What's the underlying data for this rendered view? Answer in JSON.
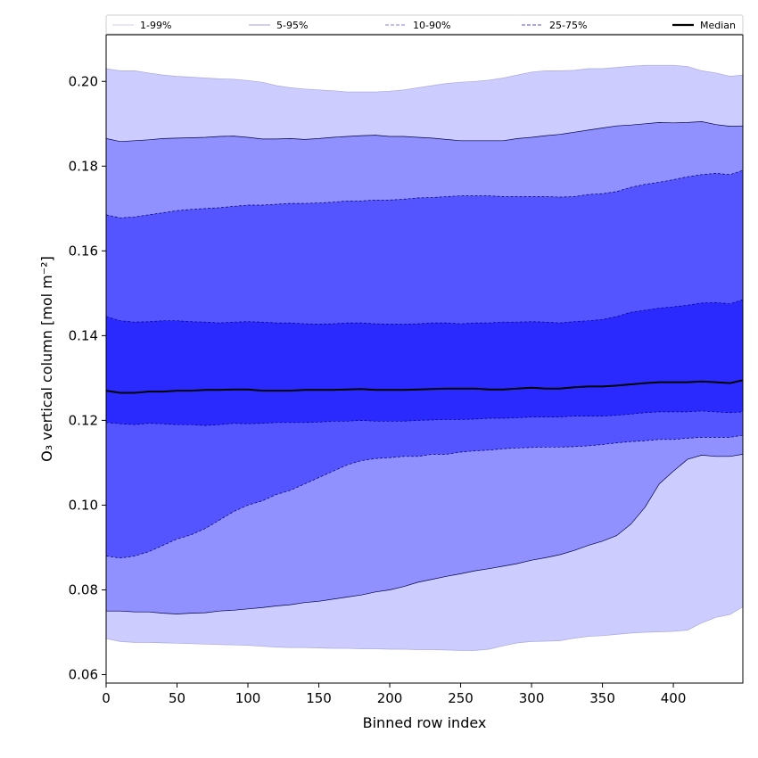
{
  "chart_data": {
    "type": "area",
    "title": "",
    "xlabel": "Binned row index",
    "ylabel": "O₃ vertical column [mol m⁻²]",
    "xlim": [
      0,
      449
    ],
    "ylim": [
      0.058,
      0.211
    ],
    "xticks": [
      0,
      50,
      100,
      150,
      200,
      250,
      300,
      350,
      400
    ],
    "yticks": [
      0.06,
      0.08,
      0.1,
      0.12,
      0.14,
      0.16,
      0.18,
      0.2
    ],
    "grid": false,
    "legend_position": "top",
    "x": [
      0,
      10,
      20,
      30,
      40,
      50,
      60,
      70,
      80,
      90,
      100,
      110,
      120,
      130,
      140,
      150,
      160,
      170,
      180,
      190,
      200,
      210,
      220,
      230,
      240,
      250,
      260,
      270,
      280,
      290,
      300,
      310,
      320,
      330,
      340,
      350,
      360,
      370,
      380,
      390,
      400,
      410,
      420,
      430,
      440,
      449
    ],
    "bands": [
      {
        "name": "1-99%",
        "color": "#ccccff",
        "line_color": "#aaaadd",
        "line_style": "solid",
        "lower": [
          0.0685,
          0.0678,
          0.0676,
          0.0676,
          0.0675,
          0.0674,
          0.0673,
          0.0672,
          0.0671,
          0.067,
          0.0669,
          0.0667,
          0.0665,
          0.0664,
          0.0664,
          0.0663,
          0.0662,
          0.0662,
          0.0661,
          0.0661,
          0.066,
          0.066,
          0.0659,
          0.0659,
          0.0658,
          0.0657,
          0.0657,
          0.066,
          0.0668,
          0.0675,
          0.0678,
          0.0679,
          0.068,
          0.0686,
          0.069,
          0.0692,
          0.0695,
          0.0698,
          0.07,
          0.0701,
          0.0702,
          0.0705,
          0.0722,
          0.0735,
          0.0742,
          0.076
        ],
        "upper": [
          0.203,
          0.2025,
          0.2025,
          0.202,
          0.2015,
          0.2012,
          0.201,
          0.2008,
          0.2006,
          0.2005,
          0.2002,
          0.1998,
          0.199,
          0.1985,
          0.1982,
          0.198,
          0.1978,
          0.1975,
          0.1975,
          0.1975,
          0.1977,
          0.198,
          0.1985,
          0.199,
          0.1995,
          0.1998,
          0.2,
          0.2003,
          0.2008,
          0.2015,
          0.2022,
          0.2025,
          0.2025,
          0.2026,
          0.203,
          0.203,
          0.2033,
          0.2036,
          0.2038,
          0.2038,
          0.2038,
          0.2035,
          0.2025,
          0.202,
          0.2012,
          0.2015
        ]
      },
      {
        "name": "5-95%",
        "color": "#9090ff",
        "line_color": "#000044",
        "line_style": "solid",
        "lower": [
          0.075,
          0.075,
          0.0748,
          0.0748,
          0.0745,
          0.0743,
          0.0745,
          0.0746,
          0.075,
          0.0752,
          0.0755,
          0.0758,
          0.0762,
          0.0765,
          0.077,
          0.0773,
          0.0778,
          0.0783,
          0.0788,
          0.0795,
          0.08,
          0.0808,
          0.0818,
          0.0825,
          0.0832,
          0.0838,
          0.0845,
          0.085,
          0.0856,
          0.0862,
          0.087,
          0.0876,
          0.0883,
          0.0893,
          0.0905,
          0.0915,
          0.0928,
          0.0955,
          0.0995,
          0.105,
          0.108,
          0.1108,
          0.1118,
          0.1115,
          0.1115,
          0.112
        ],
        "upper": [
          0.1865,
          0.1858,
          0.186,
          0.1862,
          0.1865,
          0.1866,
          0.1867,
          0.1868,
          0.187,
          0.1871,
          0.1868,
          0.1864,
          0.1864,
          0.1865,
          0.1863,
          0.1865,
          0.1868,
          0.187,
          0.1872,
          0.1873,
          0.187,
          0.187,
          0.1868,
          0.1866,
          0.1863,
          0.186,
          0.186,
          0.186,
          0.186,
          0.1865,
          0.1868,
          0.1872,
          0.1875,
          0.188,
          0.1885,
          0.189,
          0.1895,
          0.1897,
          0.19,
          0.1903,
          0.1902,
          0.1903,
          0.1905,
          0.1898,
          0.1894,
          0.1895
        ]
      },
      {
        "name": "10-90%",
        "color": "#5555ff",
        "line_color": "#000066",
        "line_style": "dashed",
        "lower": [
          0.088,
          0.0875,
          0.088,
          0.089,
          0.0905,
          0.092,
          0.093,
          0.0945,
          0.0965,
          0.0985,
          0.1,
          0.101,
          0.1025,
          0.1035,
          0.105,
          0.1065,
          0.108,
          0.1095,
          0.1105,
          0.111,
          0.1112,
          0.1115,
          0.1115,
          0.112,
          0.112,
          0.1125,
          0.1128,
          0.113,
          0.1133,
          0.1135,
          0.1136,
          0.1137,
          0.1137,
          0.1138,
          0.114,
          0.1143,
          0.1147,
          0.115,
          0.1152,
          0.1155,
          0.1155,
          0.1158,
          0.116,
          0.116,
          0.116,
          0.1165
        ],
        "upper": [
          0.1685,
          0.1678,
          0.168,
          0.1685,
          0.169,
          0.1695,
          0.1698,
          0.17,
          0.1702,
          0.1705,
          0.1708,
          0.1708,
          0.171,
          0.1712,
          0.1712,
          0.1713,
          0.1715,
          0.1718,
          0.1718,
          0.172,
          0.172,
          0.1722,
          0.1725,
          0.1726,
          0.1728,
          0.173,
          0.173,
          0.173,
          0.1728,
          0.1728,
          0.1728,
          0.1728,
          0.1727,
          0.1728,
          0.1733,
          0.1735,
          0.174,
          0.175,
          0.1757,
          0.1762,
          0.1768,
          0.1775,
          0.178,
          0.1783,
          0.178,
          0.179
        ]
      },
      {
        "name": "25-75%",
        "color": "#2a2aff",
        "line_color": "#000088",
        "line_style": "dashed",
        "lower": [
          0.1195,
          0.1192,
          0.119,
          0.1193,
          0.1192,
          0.119,
          0.119,
          0.1188,
          0.119,
          0.1193,
          0.1192,
          0.1193,
          0.1195,
          0.1195,
          0.1195,
          0.1196,
          0.1198,
          0.1198,
          0.12,
          0.1198,
          0.1198,
          0.1198,
          0.12,
          0.1201,
          0.1202,
          0.1202,
          0.1203,
          0.1205,
          0.1205,
          0.1206,
          0.1208,
          0.1208,
          0.1208,
          0.121,
          0.121,
          0.121,
          0.1212,
          0.1215,
          0.1218,
          0.122,
          0.122,
          0.122,
          0.1222,
          0.122,
          0.1218,
          0.122
        ],
        "upper": [
          0.1445,
          0.1435,
          0.1432,
          0.1433,
          0.1435,
          0.1435,
          0.1433,
          0.1432,
          0.143,
          0.1432,
          0.1433,
          0.1432,
          0.143,
          0.143,
          0.1428,
          0.1427,
          0.1428,
          0.143,
          0.143,
          0.1428,
          0.1427,
          0.1427,
          0.1428,
          0.143,
          0.143,
          0.1428,
          0.143,
          0.143,
          0.1432,
          0.1432,
          0.1433,
          0.1432,
          0.143,
          0.1433,
          0.1435,
          0.1438,
          0.1445,
          0.1455,
          0.146,
          0.1465,
          0.1468,
          0.1472,
          0.1477,
          0.1478,
          0.1475,
          0.1485
        ]
      }
    ],
    "median": {
      "name": "Median",
      "color": "#000000",
      "values": [
        0.127,
        0.1265,
        0.1265,
        0.1268,
        0.1268,
        0.127,
        0.127,
        0.1272,
        0.1272,
        0.1273,
        0.1273,
        0.127,
        0.127,
        0.127,
        0.1272,
        0.1272,
        0.1272,
        0.1273,
        0.1274,
        0.1272,
        0.1272,
        0.1272,
        0.1273,
        0.1274,
        0.1275,
        0.1275,
        0.1275,
        0.1273,
        0.1273,
        0.1275,
        0.1277,
        0.1275,
        0.1275,
        0.1278,
        0.128,
        0.128,
        0.1282,
        0.1285,
        0.1288,
        0.129,
        0.129,
        0.129,
        0.1292,
        0.129,
        0.1288,
        0.1295
      ]
    },
    "legend": [
      {
        "label": "1-99%",
        "color": "#cfcfef",
        "style": "solid"
      },
      {
        "label": "5-95%",
        "color": "#a0a0dd",
        "style": "solid"
      },
      {
        "label": "10-90%",
        "color": "#8080ee",
        "style": "dashed"
      },
      {
        "label": "25-75%",
        "color": "#5050dd",
        "style": "dashed"
      },
      {
        "label": "Median",
        "color": "#000000",
        "style": "solid-thick"
      }
    ]
  }
}
